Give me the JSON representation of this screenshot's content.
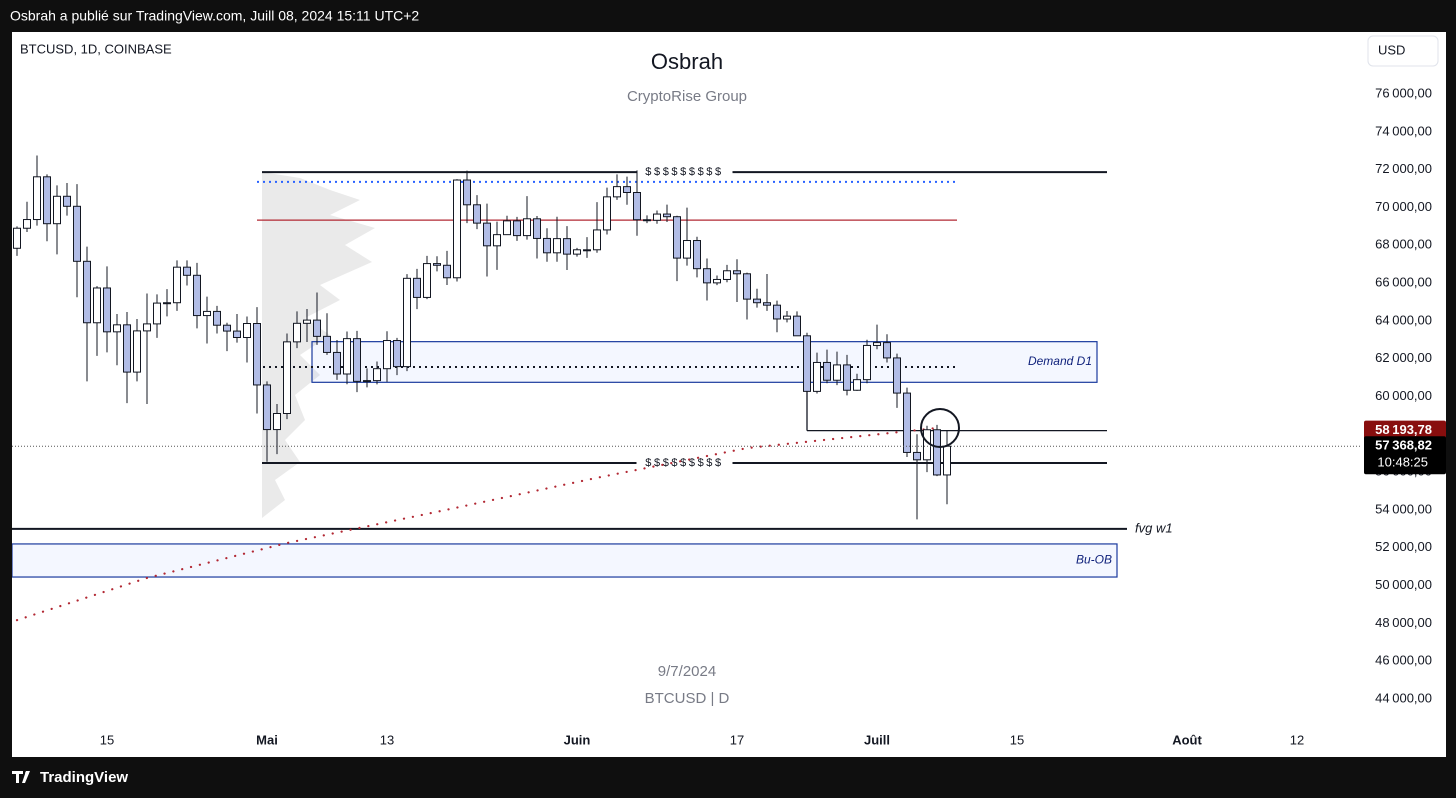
{
  "header": {
    "text": "Osbrah a publié sur TradingView.com, Juill 08, 2024 15:11 UTC+2"
  },
  "footer": {
    "brand": "TradingView"
  },
  "chart_data": {
    "type": "candlestick",
    "symbol": "BTCUSD, 1D, COINBASE",
    "title": "Osbrah",
    "subtitle": "CryptoRise Group",
    "currency": "USD",
    "watermark": [
      "9/7/2024",
      "BTCUSD | D"
    ],
    "up_color": "#ffffff",
    "down_color": "#b2bde6",
    "grid": false,
    "x": [
      "2024-04-06",
      "2024-04-07",
      "2024-04-08",
      "2024-04-09",
      "2024-04-10",
      "2024-04-11",
      "2024-04-12",
      "2024-04-13",
      "2024-04-14",
      "2024-04-15",
      "2024-04-16",
      "2024-04-17",
      "2024-04-18",
      "2024-04-19",
      "2024-04-20",
      "2024-04-21",
      "2024-04-22",
      "2024-04-23",
      "2024-04-24",
      "2024-04-25",
      "2024-04-26",
      "2024-04-27",
      "2024-04-28",
      "2024-04-29",
      "2024-04-30",
      "2024-05-01",
      "2024-05-02",
      "2024-05-03",
      "2024-05-04",
      "2024-05-05",
      "2024-05-06",
      "2024-05-07",
      "2024-05-08",
      "2024-05-09",
      "2024-05-10",
      "2024-05-11",
      "2024-05-12",
      "2024-05-13",
      "2024-05-14",
      "2024-05-15",
      "2024-05-16",
      "2024-05-17",
      "2024-05-18",
      "2024-05-19",
      "2024-05-20",
      "2024-05-21",
      "2024-05-22",
      "2024-05-23",
      "2024-05-24",
      "2024-05-25",
      "2024-05-26",
      "2024-05-27",
      "2024-05-28",
      "2024-05-29",
      "2024-05-30",
      "2024-05-31",
      "2024-06-01",
      "2024-06-02",
      "2024-06-03",
      "2024-06-04",
      "2024-06-05",
      "2024-06-06",
      "2024-06-07",
      "2024-06-08",
      "2024-06-09",
      "2024-06-10",
      "2024-06-11",
      "2024-06-12",
      "2024-06-13",
      "2024-06-14",
      "2024-06-15",
      "2024-06-16",
      "2024-06-17",
      "2024-06-18",
      "2024-06-19",
      "2024-06-20",
      "2024-06-21",
      "2024-06-22",
      "2024-06-23",
      "2024-06-24",
      "2024-06-25",
      "2024-06-26",
      "2024-06-27",
      "2024-06-28",
      "2024-06-29",
      "2024-06-30",
      "2024-07-01",
      "2024-07-02",
      "2024-07-03",
      "2024-07-04",
      "2024-07-05",
      "2024-07-06",
      "2024-07-07",
      "2024-07-08"
    ],
    "open": [
      67840,
      68900,
      69360,
      71620,
      69140,
      70590,
      70060,
      67150,
      63900,
      65740,
      63420,
      63790,
      61290,
      63470,
      63840,
      64940,
      64960,
      66840,
      66410,
      64280,
      64500,
      63770,
      63460,
      63120,
      63860,
      60610,
      58250,
      59100,
      62890,
      63870,
      64040,
      63180,
      62330,
      61190,
      63060,
      60800,
      60840,
      61470,
      62960,
      61580,
      66250,
      65240,
      67030,
      66940,
      66280,
      71450,
      70140,
      69170,
      67970,
      68560,
      69290,
      68510,
      69400,
      68360,
      67600,
      68350,
      67530,
      67760,
      67760,
      68810,
      70560,
      71100,
      70790,
      69350,
      69320,
      69650,
      69510,
      67320,
      68250,
      66760,
      66010,
      66190,
      66650,
      66490,
      65150,
      64960,
      64830,
      64100,
      64250,
      63210,
      60270,
      61800,
      60860,
      61670,
      60330,
      60890,
      62700,
      62850,
      62040,
      60180,
      57040,
      56650,
      58240,
      55850
    ],
    "high": [
      69000,
      70300,
      72750,
      71750,
      71170,
      71290,
      71230,
      67930,
      65840,
      66880,
      64360,
      64470,
      64100,
      65450,
      65400,
      65680,
      67200,
      67200,
      67070,
      65280,
      64790,
      63900,
      64360,
      64230,
      64730,
      60800,
      59600,
      63330,
      64500,
      64630,
      65500,
      64400,
      62990,
      63440,
      63470,
      61490,
      61850,
      63450,
      63100,
      66470,
      66750,
      67440,
      67420,
      67700,
      71500,
      71950,
      70650,
      70200,
      69250,
      69560,
      69500,
      70600,
      69550,
      68900,
      69510,
      69010,
      67860,
      68430,
      70280,
      71050,
      71750,
      71630,
      71960,
      69580,
      69840,
      70150,
      69560,
      69990,
      68450,
      67300,
      66400,
      66960,
      67260,
      66550,
      65700,
      66480,
      65070,
      64520,
      64500,
      63370,
      62320,
      62480,
      62370,
      62200,
      61200,
      63000,
      63800,
      63290,
      62270,
      60470,
      58000,
      58450,
      58500,
      58200
    ],
    "low": [
      67440,
      68700,
      69040,
      68210,
      67520,
      69570,
      65250,
      60800,
      62150,
      62330,
      61650,
      59650,
      60800,
      59600,
      63100,
      64240,
      64530,
      65870,
      63600,
      62800,
      63330,
      62400,
      62850,
      61800,
      59100,
      56550,
      56950,
      58800,
      62560,
      62880,
      62730,
      62200,
      60880,
      60650,
      60230,
      60480,
      60640,
      60770,
      61130,
      61340,
      64620,
      65150,
      66620,
      65900,
      66080,
      69170,
      68850,
      66350,
      66700,
      68550,
      68230,
      68300,
      67300,
      67130,
      67130,
      66690,
      67400,
      67330,
      67600,
      68570,
      70400,
      70140,
      68500,
      69170,
      69140,
      69230,
      66100,
      66920,
      66300,
      65080,
      65890,
      66040,
      65000,
      64070,
      64700,
      64530,
      63400,
      63920,
      63200,
      58400,
      60160,
      60700,
      60600,
      60060,
      60300,
      60700,
      62500,
      61800,
      59400,
      56800,
      53500,
      56000,
      55790,
      54300
    ],
    "close": [
      68900,
      69360,
      71620,
      69140,
      70590,
      70060,
      67150,
      63900,
      65740,
      63420,
      63790,
      61290,
      63470,
      63840,
      64940,
      64960,
      66840,
      66410,
      64280,
      64500,
      63770,
      63460,
      63120,
      63860,
      60610,
      58250,
      59100,
      62890,
      63870,
      64040,
      63180,
      62330,
      61190,
      63060,
      60800,
      60840,
      61470,
      62960,
      61580,
      66250,
      65240,
      67030,
      66940,
      66280,
      71450,
      70140,
      69170,
      67970,
      68560,
      69290,
      68510,
      69400,
      68360,
      67600,
      68350,
      67530,
      67760,
      67760,
      68810,
      70560,
      71100,
      70790,
      69350,
      69320,
      69650,
      69510,
      67320,
      68250,
      66760,
      66010,
      66190,
      66650,
      66490,
      65150,
      64960,
      64830,
      64100,
      64250,
      63210,
      60270,
      61800,
      60860,
      61670,
      60330,
      60890,
      62700,
      62850,
      62040,
      60180,
      57040,
      56650,
      58240,
      55850,
      57370
    ],
    "xlim": [
      "2024-04-06",
      "2024-08-19"
    ],
    "xticks": [
      {
        "value": "2024-04-15",
        "label": "15"
      },
      {
        "value": "2024-05-01",
        "label": "Mai"
      },
      {
        "value": "2024-05-13",
        "label": "13"
      },
      {
        "value": "2024-06-01",
        "label": "Juin"
      },
      {
        "value": "2024-06-17",
        "label": "17"
      },
      {
        "value": "2024-07-01",
        "label": "Juill"
      },
      {
        "value": "2024-07-15",
        "label": "15"
      },
      {
        "value": "2024-08-01",
        "label": "Août"
      },
      {
        "value": "2024-08-12",
        "label": "12"
      }
    ],
    "ylim": [
      40930,
      79280
    ],
    "yticks": [
      {
        "value": 44000,
        "label": "44 000,00"
      },
      {
        "value": 46000,
        "label": "46 000,00"
      },
      {
        "value": 48000,
        "label": "48 000,00"
      },
      {
        "value": 50000,
        "label": "50 000,00"
      },
      {
        "value": 52000,
        "label": "52 000,00"
      },
      {
        "value": 54000,
        "label": "54 000,00"
      },
      {
        "value": 56000,
        "label": "56 000,00"
      },
      {
        "value": 58000,
        "label": "58 000,00"
      },
      {
        "value": 60000,
        "label": "60 000,00"
      },
      {
        "value": 62000,
        "label": "62 000,00"
      },
      {
        "value": 64000,
        "label": "64 000,00"
      },
      {
        "value": 66000,
        "label": "66 000,00"
      },
      {
        "value": 68000,
        "label": "68 000,00"
      },
      {
        "value": 70000,
        "label": "70 000,00"
      },
      {
        "value": 72000,
        "label": "72 000,00"
      },
      {
        "value": 74000,
        "label": "74 000,00"
      },
      {
        "value": 76000,
        "label": "76 000,00"
      }
    ],
    "price_tags": [
      {
        "value": 58193.78,
        "label": "58 193,78",
        "color": "#880e0e"
      },
      {
        "value": 57368.82,
        "label": "57 368,82",
        "color": "#000000",
        "countdown": "10:48:25",
        "line_style": "dotted"
      }
    ],
    "levels": [
      {
        "y": 71350,
        "x": [
          "2024-04-30",
          "2024-07-09"
        ],
        "color": "#2962ff",
        "style": "dotted"
      },
      {
        "y": 69330,
        "x": [
          "2024-04-30",
          "2024-07-09"
        ],
        "color": "#b22833",
        "style": "solid"
      },
      {
        "y": 61560,
        "x": [
          "2024-04-30",
          "2024-07-09"
        ],
        "color": "#131722",
        "style": "dotted"
      },
      {
        "y": 58193.78,
        "x": [
          "2024-06-24",
          "2024-07-24"
        ],
        "color": "#131722",
        "style": "solid",
        "from_candle": true
      }
    ],
    "annotations": [
      {
        "text": "$$$$$$$$$",
        "y": 71870,
        "x": [
          "2024-05-01",
          "2024-07-24"
        ],
        "label_position": "center"
      },
      {
        "text": "$$$$$$$$$",
        "y": 56480,
        "x": [
          "2024-05-01",
          "2024-07-24"
        ],
        "label_position": "center"
      },
      {
        "text": "Demand D1",
        "ylim": [
          60750,
          62900
        ],
        "x": [
          "2024-05-06",
          "2024-07-23"
        ],
        "label_position": "inside-right"
      },
      {
        "text": "fvg w1",
        "y": 53000,
        "x": [
          "2024-04-06",
          "2024-07-26"
        ],
        "label_position": "right"
      },
      {
        "text": "Bu-OB",
        "ylim": [
          50450,
          52200
        ],
        "x": [
          "2024-04-06",
          "2024-07-25"
        ],
        "label_position": "inside-right"
      }
    ],
    "overlay": {
      "color": "#b22833",
      "x": [
        "2024-04-06",
        "2024-04-19",
        "2024-05-03",
        "2024-05-18",
        "2024-06-03",
        "2024-06-18",
        "2024-07-07"
      ],
      "values": [
        48170,
        50400,
        52250,
        53900,
        55700,
        57270,
        58330
      ]
    }
  }
}
